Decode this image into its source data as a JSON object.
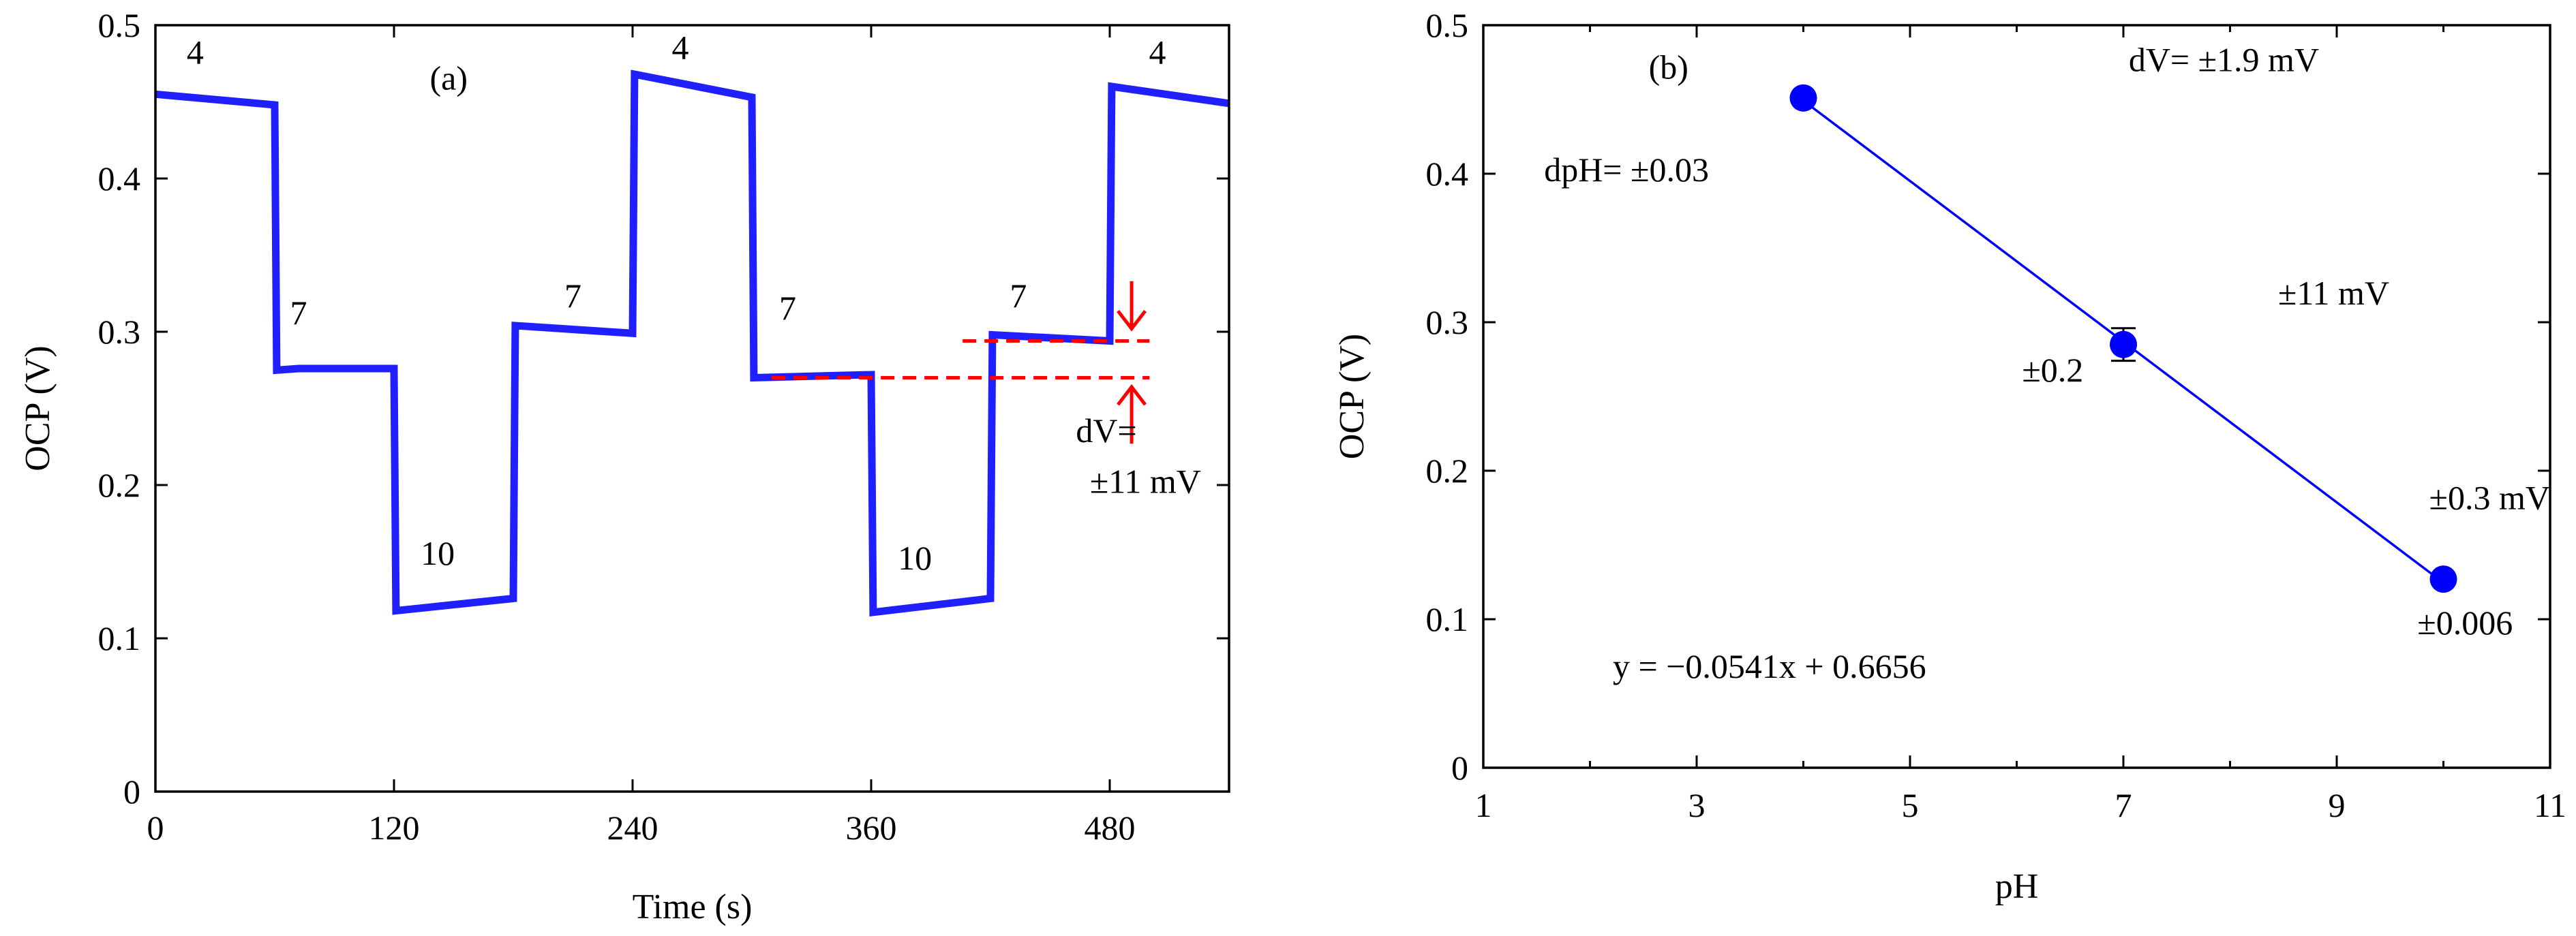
{
  "chart_data": [
    {
      "panel": "(a)",
      "type": "line",
      "xlabel": "Time (s)",
      "ylabel": "OCP (V)",
      "xlim": [
        0,
        540
      ],
      "ylim": [
        0,
        0.5
      ],
      "xticks": [
        0,
        120,
        240,
        360,
        480
      ],
      "yticks": [
        0,
        0.1,
        0.2,
        0.3,
        0.4,
        0.5
      ],
      "xtick_labels": [
        "0",
        "120",
        "240",
        "360",
        "480"
      ],
      "ytick_labels": [
        "0",
        "0.1",
        "0.2",
        "0.3",
        "0.4",
        "0.5"
      ],
      "grid": false,
      "series": [
        {
          "name": "OCP",
          "color": "#1f1fff",
          "x": [
            0,
            60,
            61,
            72,
            120,
            121,
            180,
            181,
            240,
            241,
            300,
            301,
            360,
            361,
            420,
            421,
            480,
            481,
            540
          ],
          "y": [
            0.455,
            0.448,
            0.275,
            0.276,
            0.276,
            0.118,
            0.126,
            0.304,
            0.299,
            0.468,
            0.453,
            0.27,
            0.272,
            0.117,
            0.126,
            0.298,
            0.294,
            0.46,
            0.449
          ]
        }
      ],
      "ph_labels": [
        {
          "text": "4",
          "x": 20,
          "y": 0.475
        },
        {
          "text": "7",
          "x": 72,
          "y": 0.305
        },
        {
          "text": "10",
          "x": 142,
          "y": 0.148
        },
        {
          "text": "7",
          "x": 210,
          "y": 0.316
        },
        {
          "text": "4",
          "x": 264,
          "y": 0.478
        },
        {
          "text": "7",
          "x": 318,
          "y": 0.308
        },
        {
          "text": "10",
          "x": 382,
          "y": 0.145
        },
        {
          "text": "7",
          "x": 434,
          "y": 0.316
        },
        {
          "text": "4",
          "x": 504,
          "y": 0.475
        }
      ],
      "reference_lines": [
        {
          "color": "#ff0000",
          "style": "dashed",
          "x": [
            406,
            500
          ],
          "y": 0.294
        },
        {
          "color": "#ff0000",
          "style": "dashed",
          "x": [
            310,
            500
          ],
          "y": 0.27
        }
      ],
      "arrows": [
        {
          "color": "#ff0000",
          "x": 491,
          "from_y": 0.333,
          "to_y": 0.302
        },
        {
          "color": "#ff0000",
          "x": 491,
          "from_y": 0.227,
          "to_y": 0.264
        }
      ],
      "annotations": [
        {
          "text": "(a)",
          "x": 138,
          "y": 0.458
        },
        {
          "text": "dV=",
          "x": 463,
          "y": 0.228
        },
        {
          "text": "±11 mV",
          "x": 470,
          "y": 0.195
        }
      ]
    },
    {
      "panel": "(b)",
      "type": "scatter",
      "xlabel": "pH",
      "ylabel": "OCP (V)",
      "xlim": [
        1,
        11
      ],
      "ylim": [
        0,
        0.5
      ],
      "xticks": [
        1,
        3,
        5,
        7,
        9,
        11
      ],
      "yticks": [
        0,
        0.1,
        0.2,
        0.3,
        0.4,
        0.5
      ],
      "xtick_labels": [
        "1",
        "3",
        "5",
        "7",
        "9",
        "11"
      ],
      "ytick_labels": [
        "0",
        "0.1",
        "0.2",
        "0.3",
        "0.4",
        "0.5"
      ],
      "minor_xticks": [
        2,
        4,
        6,
        8,
        10
      ],
      "grid": false,
      "points": [
        {
          "x": 4,
          "y": 0.451,
          "yerr": 0.0019
        },
        {
          "x": 7,
          "y": 0.285,
          "yerr": 0.011
        },
        {
          "x": 10,
          "y": 0.127,
          "yerr": 0.0003
        }
      ],
      "marker_color": "#0000ff",
      "fit": {
        "slope": -0.0541,
        "intercept": 0.6656,
        "x": [
          4,
          10
        ],
        "color": "#0000ff"
      },
      "equation": "y = −0.0541x + 0.6656",
      "annotations": [
        {
          "text": "(b)",
          "x": 2.55,
          "y": 0.464
        },
        {
          "text": "dV= ±1.9 mV",
          "x": 7.05,
          "y": 0.469
        },
        {
          "text": "dpH= ±0.03",
          "x": 1.57,
          "y": 0.395
        },
        {
          "text": "±11 mV",
          "x": 8.45,
          "y": 0.312
        },
        {
          "text": "±0.2",
          "x": 6.05,
          "y": 0.26
        },
        {
          "text": "±0.3 mV",
          "x": 11,
          "y": 0.174
        },
        {
          "text": "±0.006",
          "x": 10.65,
          "y": 0.09
        }
      ]
    }
  ]
}
